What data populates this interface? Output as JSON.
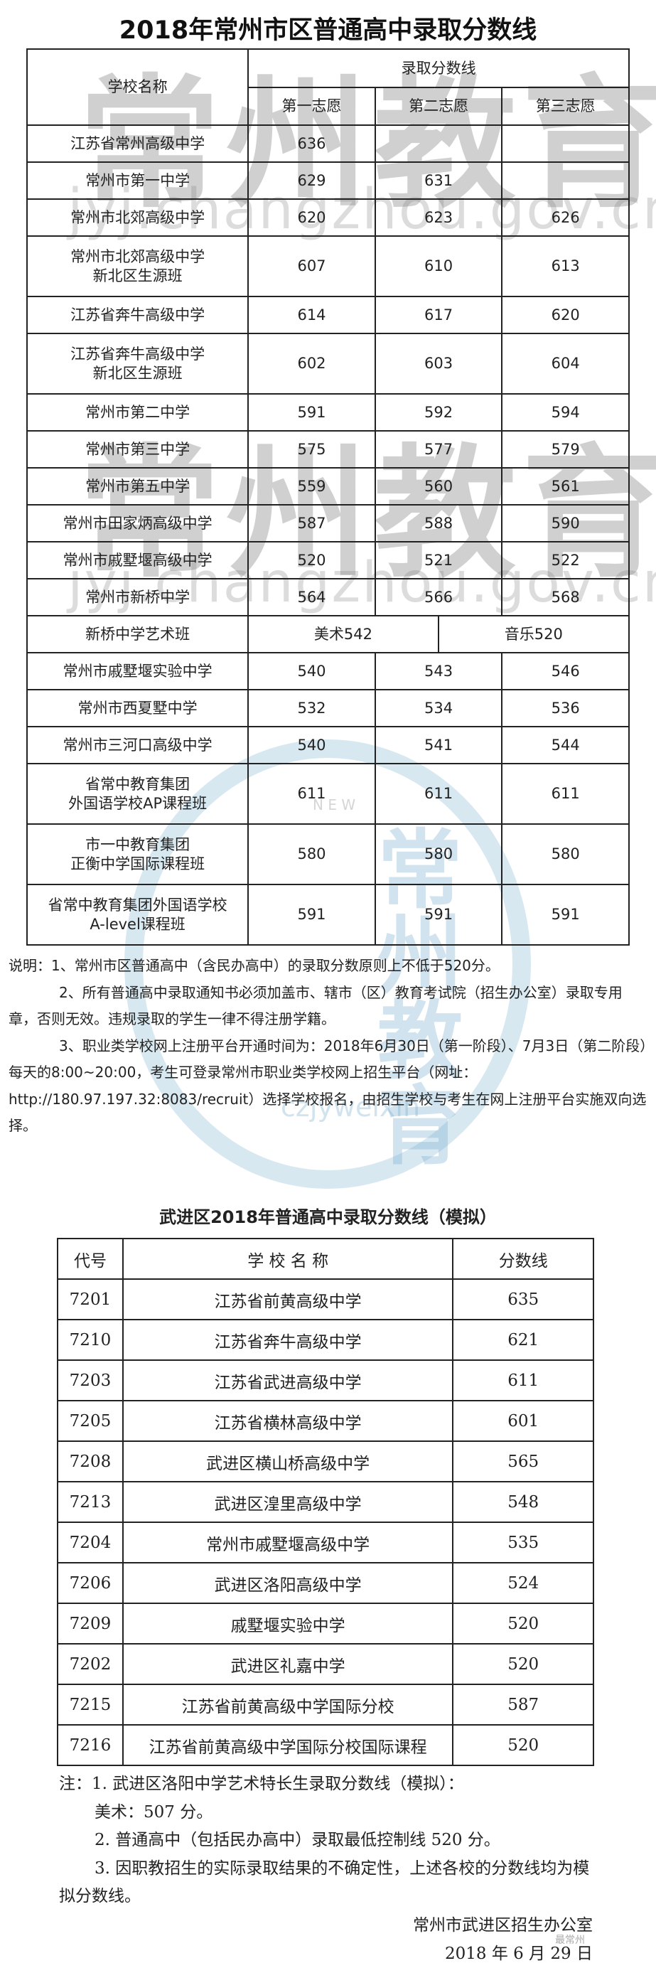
{
  "watermarks": {
    "calligraphy": "常州教育",
    "url": "jyj.changzhou.gov.cn",
    "logo_text": "常州教育",
    "logo_sub": "czjyweixin",
    "logo_new": "N E W",
    "wechat_badge": "最常州"
  },
  "section1": {
    "title": "2018年常州市区普通高中录取分数线",
    "headers": {
      "school": "学校名称",
      "score_group": "录取分数线",
      "first": "第一志愿",
      "second": "第二志愿",
      "third": "第三志愿"
    },
    "rows": [
      {
        "name": [
          "江苏省常州高级中学"
        ],
        "scores": [
          "636",
          "",
          ""
        ]
      },
      {
        "name": [
          "常州市第一中学"
        ],
        "scores": [
          "629",
          "631",
          ""
        ]
      },
      {
        "name": [
          "常州市北郊高级中学"
        ],
        "scores": [
          "620",
          "623",
          "626"
        ]
      },
      {
        "name": [
          "常州市北郊高级中学",
          "新北区生源班"
        ],
        "scores": [
          "607",
          "610",
          "613"
        ]
      },
      {
        "name": [
          "江苏省奔牛高级中学"
        ],
        "scores": [
          "614",
          "617",
          "620"
        ]
      },
      {
        "name": [
          "江苏省奔牛高级中学",
          "新北区生源班"
        ],
        "scores": [
          "602",
          "603",
          "604"
        ]
      },
      {
        "name": [
          "常州市第二中学"
        ],
        "scores": [
          "591",
          "592",
          "594"
        ]
      },
      {
        "name": [
          "常州市第三中学"
        ],
        "scores": [
          "575",
          "577",
          "579"
        ]
      },
      {
        "name": [
          "常州市第五中学"
        ],
        "scores": [
          "559",
          "560",
          "561"
        ]
      },
      {
        "name": [
          "常州市田家炳高级中学"
        ],
        "scores": [
          "587",
          "588",
          "590"
        ]
      },
      {
        "name": [
          "常州市戚墅堰高级中学"
        ],
        "scores": [
          "520",
          "521",
          "522"
        ]
      },
      {
        "name": [
          "常州市新桥中学"
        ],
        "scores": [
          "564",
          "566",
          "568"
        ]
      },
      {
        "name": [
          "新桥中学艺术班"
        ],
        "art": "美术542",
        "music": "音乐520"
      },
      {
        "name": [
          "常州市戚墅堰实验中学"
        ],
        "scores": [
          "540",
          "543",
          "546"
        ]
      },
      {
        "name": [
          "常州市西夏墅中学"
        ],
        "scores": [
          "532",
          "534",
          "536"
        ]
      },
      {
        "name": [
          "常州市三河口高级中学"
        ],
        "scores": [
          "540",
          "541",
          "544"
        ]
      },
      {
        "name": [
          "省常中教育集团",
          "外国语学校AP课程班"
        ],
        "scores": [
          "611",
          "611",
          "611"
        ]
      },
      {
        "name": [
          "市一中教育集团",
          "正衡中学国际课程班"
        ],
        "scores": [
          "580",
          "580",
          "580"
        ]
      },
      {
        "name": [
          "省常中教育集团外国语学校",
          "A-level课程班"
        ],
        "scores": [
          "591",
          "591",
          "591"
        ]
      }
    ],
    "notes": [
      "说明：1、常州市区普通高中（含民办高中）的录取分数原则上不低于520分。",
      "2、所有普通高中录取通知书必须加盖市、辖市（区）教育考试院（招生办公室）录取专用章，否则无效。违规录取的学生一律不得注册学籍。",
      "3、职业类学校网上注册平台开通时间为：2018年6月30日（第一阶段）、7月3日（第二阶段）每天的8:00~20:00，考生可登录常州市职业类学校网上招生平台（网址：http://180.97.197.32:8083/recruit）选择学校报名，由招生学校与考生在网上注册平台实施双向选择。"
    ]
  },
  "section2": {
    "title": "武进区2018年普通高中录取分数线（模拟）",
    "headers": {
      "code": "代号",
      "school": "学 校 名 称",
      "score": "分数线"
    },
    "rows": [
      {
        "code": "7201",
        "name": "江苏省前黄高级中学",
        "score": "635"
      },
      {
        "code": "7210",
        "name": "江苏省奔牛高级中学",
        "score": "621"
      },
      {
        "code": "7203",
        "name": "江苏省武进高级中学",
        "score": "611"
      },
      {
        "code": "7205",
        "name": "江苏省横林高级中学",
        "score": "601"
      },
      {
        "code": "7208",
        "name": "武进区横山桥高级中学",
        "score": "565"
      },
      {
        "code": "7213",
        "name": "武进区湟里高级中学",
        "score": "548"
      },
      {
        "code": "7204",
        "name": "常州市戚墅堰高级中学",
        "score": "535"
      },
      {
        "code": "7206",
        "name": "武进区洛阳高级中学",
        "score": "524"
      },
      {
        "code": "7209",
        "name": "戚墅堰实验中学",
        "score": "520"
      },
      {
        "code": "7202",
        "name": "武进区礼嘉中学",
        "score": "520"
      },
      {
        "code": "7215",
        "name": "江苏省前黄高级中学国际分校",
        "score": "587"
      },
      {
        "code": "7216",
        "name": "江苏省前黄高级中学国际分校国际课程",
        "score": "520"
      }
    ],
    "notes": [
      "注：1. 武进区洛阳中学艺术特长生录取分数线（模拟）：",
      "美术：507 分。",
      "2. 普通高中（包括民办高中）录取最低控制线 520 分。",
      "3. 因职教招生的实际录取结果的不确定性，上述各校的分数线均为模拟分数线。"
    ],
    "signature": "常州市武进区招生办公室",
    "date": "2018 年 6 月 29 日"
  }
}
